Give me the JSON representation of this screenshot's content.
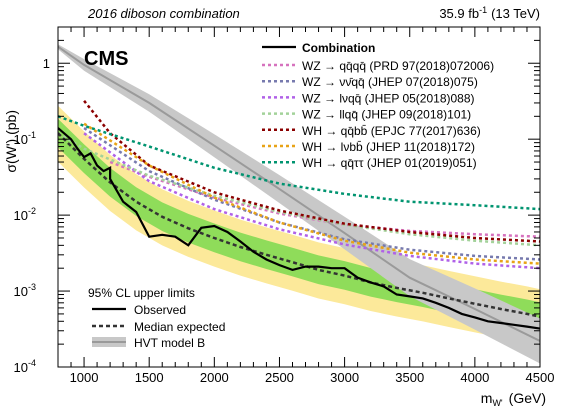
{
  "header": {
    "left": "2016 diboson combination",
    "right_lumi": "35.9 fb",
    "right_lumi_exp": "-1",
    "right_energy": "(13 TeV)"
  },
  "cms_label": "CMS",
  "chart_data": {
    "type": "line",
    "title": "",
    "xlabel_main": "m",
    "xlabel_sub": "W'",
    "xlabel_unit": "(GeV)",
    "ylabel": "σ(W') (pb)",
    "xlim": [
      800,
      4500
    ],
    "ylim": [
      0.0001,
      3
    ],
    "log_y": true,
    "x_ticks": [
      1000,
      1500,
      2000,
      2500,
      3000,
      3500,
      4000,
      4500
    ],
    "x_tick_labels": [
      "1000",
      "1500",
      "2000",
      "2500",
      "3000",
      "3500",
      "4000",
      "4500"
    ],
    "y_ticks": [
      0.0001,
      0.001,
      0.01,
      0.1,
      1
    ],
    "y_tick_labels": [
      {
        "base": "10",
        "exp": "-4"
      },
      {
        "base": "10",
        "exp": "-3"
      },
      {
        "base": "10",
        "exp": "-2"
      },
      {
        "base": "10",
        "exp": "-1"
      },
      {
        "base": "1",
        "exp": ""
      }
    ],
    "legend_primary": {
      "position": "top-right",
      "combination_label": "Combination",
      "entries": [
        {
          "label": "WZ → qq̄qq̄ (PRD 97(2018)072006)",
          "color": "#d672be"
        },
        {
          "label": "WZ → νν̄qq̄ (JHEP 07(2018)075)",
          "color": "#777aae"
        },
        {
          "label": "WZ → lνqq̄ (JHEP 05(2018)088)",
          "color": "#b061e8"
        },
        {
          "label": "WZ → llqq̄ (JHEP 09(2018)101)",
          "color": "#a3d29a"
        },
        {
          "label": "WH → qq̄bb̄ (EPJC 77(2017)636)",
          "color": "#8b0000"
        },
        {
          "label": "WH → lνbb̄ (JHEP 11(2018)172)",
          "color": "#e8a317"
        },
        {
          "label": "WH → qq̄ττ (JHEP 01(2019)051)",
          "color": "#009470"
        }
      ]
    },
    "legend_secondary": {
      "position": "bottom-left",
      "title": "95% CL upper limits",
      "observed": "Observed",
      "expected": "Median expected",
      "model": "HVT model B"
    },
    "band_colors": {
      "one_sigma": "#8fdc5a",
      "two_sigma": "#fce99a",
      "model": "#c8c8c8"
    },
    "observed": {
      "x": [
        800,
        900,
        950,
        1000,
        1050,
        1100,
        1150,
        1200,
        1200,
        1300,
        1400,
        1500,
        1600,
        1700,
        1800,
        1900,
        2000,
        2100,
        2200,
        2300,
        2400,
        2500,
        2600,
        2700,
        2800,
        2900,
        3000,
        3100,
        3200,
        3300,
        3400,
        3500,
        3600,
        3700,
        3800,
        3900,
        4000,
        4100,
        4200,
        4300,
        4400,
        4500
      ],
      "y": [
        0.14,
        0.1,
        0.075,
        0.058,
        0.065,
        0.045,
        0.038,
        0.042,
        0.03,
        0.015,
        0.011,
        0.0052,
        0.0055,
        0.0052,
        0.004,
        0.0068,
        0.0072,
        0.006,
        0.0045,
        0.0033,
        0.0026,
        0.0022,
        0.0019,
        0.0021,
        0.0021,
        0.002,
        0.002,
        0.0015,
        0.0013,
        0.00115,
        0.0009,
        0.00085,
        0.0008,
        0.0007,
        0.0006,
        0.0005,
        0.00045,
        0.0004,
        0.00038,
        0.00036,
        0.00034,
        0.00032
      ]
    },
    "expected": {
      "x": [
        800,
        1000,
        1200,
        1400,
        1600,
        1800,
        2000,
        2200,
        2400,
        2600,
        2800,
        3000,
        3200,
        3400,
        3600,
        3800,
        4000,
        4200,
        4400,
        4500
      ],
      "y": [
        0.12,
        0.055,
        0.027,
        0.015,
        0.0095,
        0.0067,
        0.005,
        0.0038,
        0.003,
        0.0024,
        0.0019,
        0.0016,
        0.0013,
        0.0011,
        0.00095,
        0.0008,
        0.00068,
        0.00058,
        0.0005,
        0.00046
      ]
    },
    "band_1sigma_factor": [
      1.55,
      0.65
    ],
    "band_2sigma_factor": [
      2.3,
      0.42
    ],
    "hvt_model": {
      "x": [
        800,
        1000,
        1500,
        2000,
        2500,
        3000,
        3500,
        4000,
        4500
      ],
      "y": [
        1.65,
        0.95,
        0.3,
        0.082,
        0.022,
        0.0058,
        0.0015,
        0.00058,
        0.00022
      ]
    },
    "channels": [
      {
        "name": "WZ → qq̄qq̄ (PRD 97(2018)072006)",
        "color": "#d672be",
        "x": [
          1200,
          1500,
          2000,
          2500,
          3000,
          3500,
          4000,
          4500
        ],
        "y": [
          0.05,
          0.032,
          0.017,
          0.0105,
          0.0075,
          0.0062,
          0.0056,
          0.0052
        ]
      },
      {
        "name": "WZ → νν̄qq̄ (JHEP 07(2018)075)",
        "color": "#777aae",
        "x": [
          1000,
          1500,
          2000,
          2500,
          3000,
          3500,
          4000,
          4500
        ],
        "y": [
          0.14,
          0.038,
          0.016,
          0.008,
          0.0048,
          0.0035,
          0.0029,
          0.0026
        ]
      },
      {
        "name": "WZ → lνqq̄ (JHEP 05(2018)088)",
        "color": "#b061e8",
        "x": [
          1000,
          1500,
          2000,
          2500,
          3000,
          3500,
          4000,
          4500
        ],
        "y": [
          0.12,
          0.028,
          0.012,
          0.0065,
          0.0041,
          0.0029,
          0.0023,
          0.002
        ]
      },
      {
        "name": "WZ → llqq̄ (JHEP 09(2018)101)",
        "color": "#a3d29a",
        "x": [
          800,
          1000,
          1500,
          2000,
          2500,
          3000,
          3500,
          4000,
          4500
        ],
        "y": [
          0.12,
          0.075,
          0.033,
          0.018,
          0.011,
          0.0075,
          0.0056,
          0.0046,
          0.004
        ]
      },
      {
        "name": "WH → qq̄bb̄ (EPJC 77(2017)636)",
        "color": "#8b0000",
        "x": [
          1000,
          1200,
          1500,
          2000,
          2500,
          3000,
          3500,
          4000,
          4500
        ],
        "y": [
          0.32,
          0.12,
          0.045,
          0.02,
          0.0115,
          0.0077,
          0.006,
          0.005,
          0.0045
        ]
      },
      {
        "name": "WH → lνbb̄ (JHEP 11(2018)172)",
        "color": "#e8a317",
        "x": [
          1000,
          1500,
          2000,
          2500,
          3000,
          3500,
          4000,
          4500
        ],
        "y": [
          0.16,
          0.045,
          0.017,
          0.008,
          0.0046,
          0.0032,
          0.0026,
          0.0023
        ]
      },
      {
        "name": "WH → qq̄ττ (JHEP 01(2019)051)",
        "color": "#009470",
        "x": [
          800,
          1000,
          1500,
          2000,
          2500,
          3000,
          3500,
          4000,
          4500
        ],
        "y": [
          0.2,
          0.15,
          0.08,
          0.042,
          0.026,
          0.019,
          0.015,
          0.0135,
          0.012
        ]
      }
    ]
  }
}
